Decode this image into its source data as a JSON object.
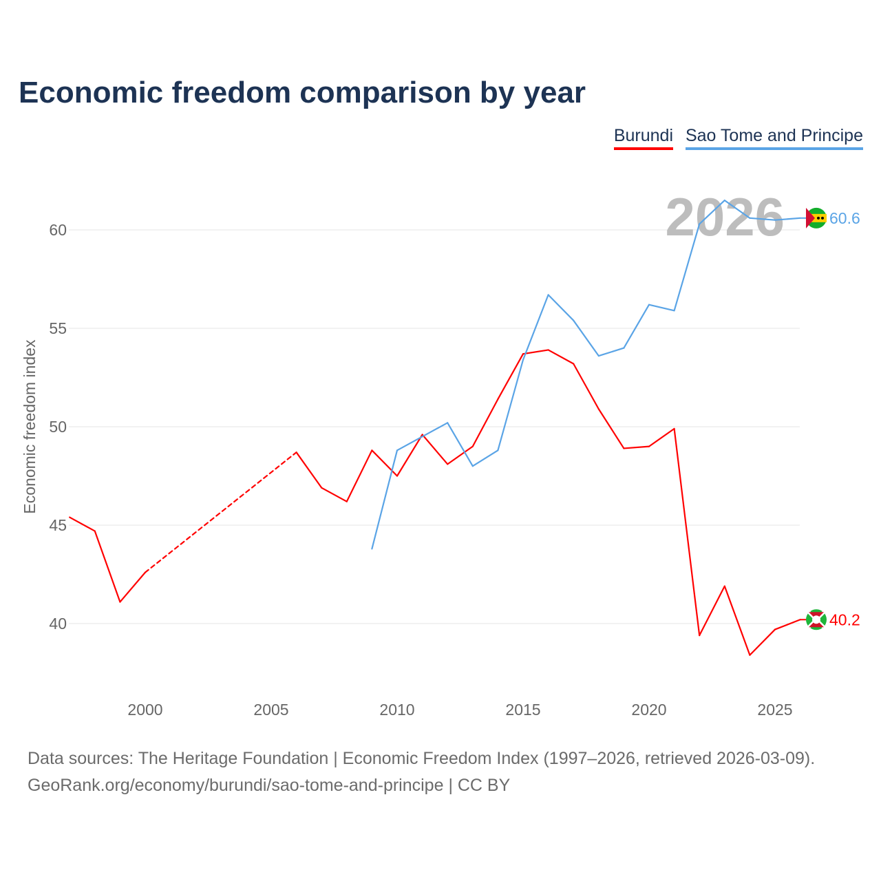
{
  "chart_data": {
    "type": "line",
    "title": "Economic freedom comparison by year",
    "xlabel": "",
    "ylabel": "Economic freedom index",
    "xlim": [
      1997,
      2026
    ],
    "ylim": [
      37,
      63
    ],
    "x_ticks": [
      2000,
      2005,
      2010,
      2015,
      2020,
      2025
    ],
    "y_ticks": [
      40,
      45,
      50,
      55,
      60
    ],
    "grid": true,
    "legend_position": "top-right",
    "highlight_year": "2026",
    "series": [
      {
        "name": "Burundi",
        "color": "#ff0000",
        "end_label": "40.2",
        "x": [
          1997,
          1998,
          1999,
          2000,
          2006,
          2007,
          2008,
          2009,
          2010,
          2011,
          2012,
          2013,
          2014,
          2015,
          2016,
          2017,
          2018,
          2019,
          2020,
          2021,
          2022,
          2023,
          2024,
          2025,
          2026
        ],
        "values": [
          45.4,
          44.7,
          41.1,
          42.6,
          48.7,
          46.9,
          46.2,
          48.8,
          47.5,
          49.6,
          48.1,
          49.0,
          51.4,
          53.7,
          53.9,
          53.2,
          50.9,
          48.9,
          49.0,
          49.9,
          39.4,
          41.9,
          38.4,
          39.7,
          40.2
        ],
        "gaps": [
          [
            2000,
            2006
          ]
        ]
      },
      {
        "name": "Sao Tome and Principe",
        "color": "#5aa4e6",
        "end_label": "60.6",
        "x": [
          2009,
          2010,
          2011,
          2012,
          2013,
          2014,
          2015,
          2016,
          2017,
          2018,
          2019,
          2020,
          2021,
          2022,
          2023,
          2024,
          2025,
          2026
        ],
        "values": [
          43.8,
          48.8,
          49.5,
          50.2,
          48.0,
          48.8,
          53.4,
          56.7,
          55.4,
          53.6,
          54.0,
          56.2,
          55.9,
          60.3,
          61.5,
          60.6,
          60.5,
          60.6
        ],
        "gaps": []
      }
    ]
  },
  "footer": {
    "line1": "Data sources: The Heritage Foundation | Economic Freedom Index (1997–2026, retrieved 2026-03-09).",
    "line2": "GeoRank.org/economy/burundi/sao-tome-and-principe | CC BY"
  }
}
